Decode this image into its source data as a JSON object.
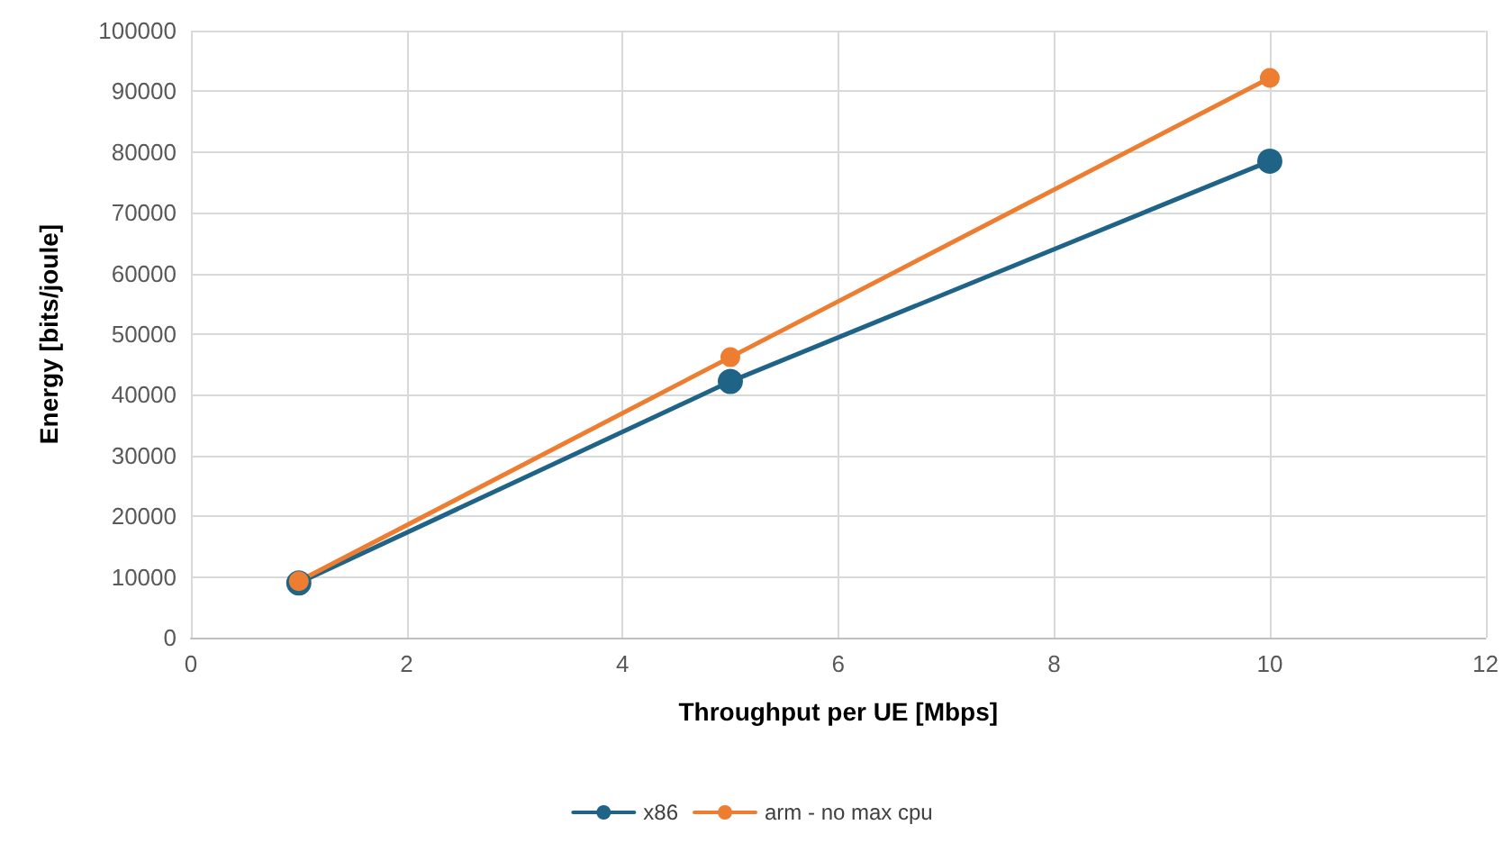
{
  "chart_data": {
    "type": "line",
    "xlabel": "Throughput per UE [Mbps]",
    "ylabel": "Energy [bits/joule]",
    "x": [
      1,
      5,
      10
    ],
    "series": [
      {
        "name": "x86",
        "color": "#1f6487",
        "values": [
          9000,
          42200,
          78500
        ]
      },
      {
        "name": "arm - no max cpu",
        "color": "#ed7d31",
        "values": [
          9300,
          46200,
          92200
        ]
      }
    ],
    "xlim": [
      0,
      12
    ],
    "xticks": [
      0,
      2,
      4,
      6,
      8,
      10,
      12
    ],
    "ylim": [
      0,
      100000
    ],
    "yticks": [
      0,
      10000,
      20000,
      30000,
      40000,
      50000,
      60000,
      70000,
      80000,
      90000,
      100000
    ],
    "grid": true,
    "legend": "bottom",
    "marker": "circle",
    "line_style": "solid"
  }
}
